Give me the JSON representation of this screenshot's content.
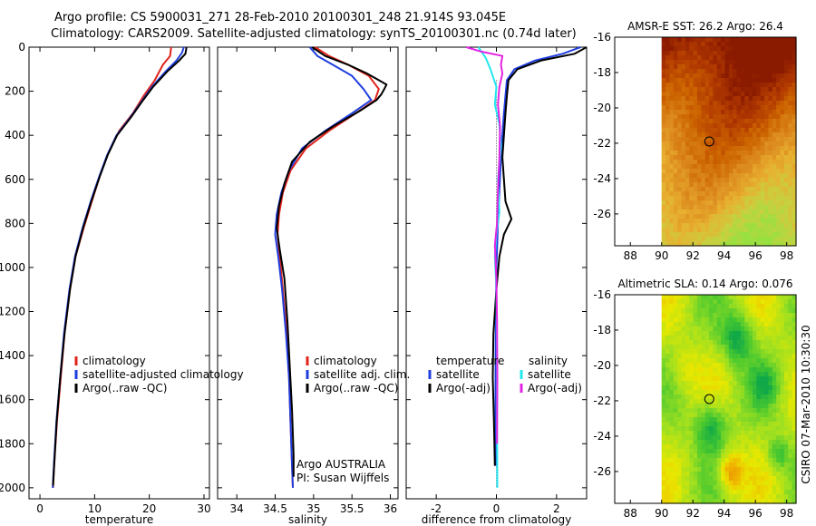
{
  "header": {
    "line1": "Argo profile: CS 5900031_271 28-Feb-2010 20100301_248 21.914S 93.045E",
    "line2": "Climatology: CARS2009. Satellite-adjusted climatology: synTS_20100301.nc (0.74d later)"
  },
  "side_label": "CSIRO 07-Mar-2010 10:30:30",
  "colors": {
    "red": "#e0241b",
    "blue": "#1f3ee0",
    "black": "#000000",
    "cyan": "#22e6f0",
    "magenta": "#e224e2"
  },
  "chart_data": [
    {
      "type": "line",
      "id": "temperature",
      "xlabel": "temperature",
      "ylabel": "",
      "xlim": [
        -2,
        31
      ],
      "ylim": [
        2050,
        0
      ],
      "xticks": [
        0,
        10,
        20,
        30
      ],
      "yticks": [
        0,
        200,
        400,
        600,
        800,
        1000,
        1200,
        1400,
        1600,
        1800,
        2000
      ],
      "legend": [
        "climatology",
        "satellite-adjusted climatology",
        "Argo(..raw -QC)"
      ],
      "series": [
        {
          "name": "climatology",
          "color": "red",
          "points": [
            [
              24,
              0
            ],
            [
              23.8,
              40
            ],
            [
              22.5,
              80
            ],
            [
              21,
              150
            ],
            [
              19,
              220
            ],
            [
              17,
              300
            ],
            [
              14.5,
              380
            ],
            [
              12.5,
              480
            ],
            [
              11,
              580
            ],
            [
              9.5,
              700
            ],
            [
              8,
              820
            ],
            [
              6.5,
              950
            ],
            [
              5.5,
              1100
            ],
            [
              4.5,
              1300
            ],
            [
              3.8,
              1500
            ],
            [
              3.1,
              1700
            ],
            [
              2.6,
              1900
            ],
            [
              2.4,
              2000
            ]
          ]
        },
        {
          "name": "satellite-adjusted climatology",
          "color": "blue",
          "points": [
            [
              26.3,
              0
            ],
            [
              26,
              25
            ],
            [
              25,
              60
            ],
            [
              23,
              110
            ],
            [
              20.5,
              180
            ],
            [
              18.5,
              250
            ],
            [
              16.5,
              320
            ],
            [
              14,
              400
            ],
            [
              12.3,
              490
            ],
            [
              10.8,
              590
            ],
            [
              9.3,
              700
            ],
            [
              7.8,
              820
            ],
            [
              6.4,
              950
            ],
            [
              5.4,
              1100
            ],
            [
              4.4,
              1300
            ],
            [
              3.7,
              1500
            ],
            [
              3,
              1700
            ],
            [
              2.55,
              1900
            ],
            [
              2.35,
              2000
            ]
          ]
        },
        {
          "name": "Argo(..raw -QC)",
          "color": "black",
          "points": [
            [
              26.8,
              0
            ],
            [
              26.6,
              30
            ],
            [
              25.5,
              60
            ],
            [
              23.3,
              110
            ],
            [
              20.7,
              180
            ],
            [
              18.6,
              250
            ],
            [
              16.6,
              320
            ],
            [
              14.1,
              400
            ],
            [
              12.4,
              490
            ],
            [
              10.9,
              590
            ],
            [
              9.4,
              700
            ],
            [
              7.9,
              820
            ],
            [
              6.5,
              950
            ],
            [
              5.5,
              1100
            ],
            [
              4.5,
              1300
            ],
            [
              3.7,
              1500
            ],
            [
              3.05,
              1700
            ],
            [
              2.6,
              1900
            ],
            [
              2.4,
              1990
            ]
          ]
        }
      ]
    },
    {
      "type": "line",
      "id": "salinity",
      "xlabel": "salinity",
      "ylabel": "",
      "xlim": [
        33.75,
        36.1
      ],
      "ylim": [
        2050,
        0
      ],
      "xticks": [
        34,
        34.5,
        35,
        35.5,
        36
      ],
      "yticks": [],
      "legend": [
        "climatology",
        "satellite adj. clim.",
        "Argo(..raw -QC)"
      ],
      "annotation": [
        "Argo AUSTRALIA",
        "PI: Susan Wijffels"
      ],
      "series": [
        {
          "name": "climatology",
          "color": "red",
          "points": [
            [
              35.02,
              0
            ],
            [
              35.2,
              40
            ],
            [
              35.45,
              80
            ],
            [
              35.72,
              130
            ],
            [
              35.85,
              190
            ],
            [
              35.8,
              240
            ],
            [
              35.55,
              300
            ],
            [
              35.2,
              380
            ],
            [
              34.9,
              460
            ],
            [
              34.7,
              560
            ],
            [
              34.6,
              660
            ],
            [
              34.55,
              760
            ],
            [
              34.53,
              850
            ],
            [
              34.56,
              950
            ],
            [
              34.6,
              1100
            ],
            [
              34.65,
              1300
            ],
            [
              34.68,
              1500
            ],
            [
              34.7,
              1700
            ],
            [
              34.72,
              1900
            ],
            [
              34.73,
              2000
            ]
          ]
        },
        {
          "name": "satellite adj. clim.",
          "color": "blue",
          "points": [
            [
              34.95,
              0
            ],
            [
              35.05,
              40
            ],
            [
              35.25,
              80
            ],
            [
              35.5,
              130
            ],
            [
              35.65,
              190
            ],
            [
              35.75,
              240
            ],
            [
              35.5,
              300
            ],
            [
              35.15,
              380
            ],
            [
              34.85,
              460
            ],
            [
              34.68,
              560
            ],
            [
              34.58,
              660
            ],
            [
              34.52,
              760
            ],
            [
              34.5,
              850
            ],
            [
              34.54,
              950
            ],
            [
              34.59,
              1100
            ],
            [
              34.64,
              1300
            ],
            [
              34.68,
              1500
            ],
            [
              34.7,
              1700
            ],
            [
              34.72,
              1900
            ],
            [
              34.73,
              2000
            ]
          ]
        },
        {
          "name": "Argo(..raw -QC)",
          "color": "black",
          "points": [
            [
              34.98,
              0
            ],
            [
              35.15,
              40
            ],
            [
              35.45,
              80
            ],
            [
              35.7,
              120
            ],
            [
              35.85,
              150
            ],
            [
              35.95,
              170
            ],
            [
              35.92,
              190
            ],
            [
              35.88,
              215
            ],
            [
              35.82,
              240
            ],
            [
              35.6,
              290
            ],
            [
              35.25,
              360
            ],
            [
              34.95,
              430
            ],
            [
              34.72,
              520
            ],
            [
              34.62,
              620
            ],
            [
              34.55,
              720
            ],
            [
              34.52,
              820
            ],
            [
              34.56,
              920
            ],
            [
              34.62,
              1050
            ],
            [
              34.66,
              1250
            ],
            [
              34.69,
              1450
            ],
            [
              34.72,
              1650
            ],
            [
              34.74,
              1850
            ],
            [
              34.74,
              1950
            ]
          ]
        }
      ]
    },
    {
      "type": "line",
      "id": "difference",
      "xlabel": "difference from climatology",
      "ylabel": "",
      "xlim": [
        -3,
        3
      ],
      "ylim": [
        2050,
        0
      ],
      "xticks": [
        -2,
        0,
        2
      ],
      "yticks": [],
      "legend_temperature_title": "temperature",
      "legend_temperature": [
        "satellite",
        "Argo(-adj)"
      ],
      "legend_salinity_title": "salinity",
      "legend_salinity": [
        "satellite",
        "Argo(-adj)"
      ],
      "series": [
        {
          "name": "temperature satellite",
          "color": "blue",
          "points": [
            [
              2.8,
              0
            ],
            [
              2.2,
              30
            ],
            [
              1.3,
              60
            ],
            [
              0.6,
              100
            ],
            [
              0.35,
              150
            ],
            [
              0.3,
              220
            ],
            [
              0.25,
              300
            ],
            [
              0.2,
              400
            ],
            [
              0.15,
              500
            ],
            [
              0.1,
              650
            ],
            [
              0.05,
              800
            ],
            [
              0,
              1000
            ],
            [
              -0.02,
              1300
            ],
            [
              -0.03,
              1600
            ],
            [
              -0.02,
              1900
            ]
          ]
        },
        {
          "name": "temperature Argo(-adj)",
          "color": "black",
          "points": [
            [
              3,
              0
            ],
            [
              2.6,
              30
            ],
            [
              1.5,
              60
            ],
            [
              0.7,
              100
            ],
            [
              0.4,
              150
            ],
            [
              0.35,
              220
            ],
            [
              0.3,
              300
            ],
            [
              0.25,
              400
            ],
            [
              0.2,
              500
            ],
            [
              0.3,
              700
            ],
            [
              0.5,
              780
            ],
            [
              0.25,
              850
            ],
            [
              0.1,
              950
            ],
            [
              0,
              1100
            ],
            [
              -0.1,
              1300
            ],
            [
              -0.12,
              1500
            ],
            [
              -0.08,
              1700
            ],
            [
              -0.05,
              1900
            ]
          ]
        },
        {
          "name": "salinity satellite",
          "color": "cyan",
          "points": [
            [
              -0.6,
              0
            ],
            [
              -0.35,
              50
            ],
            [
              -0.2,
              100
            ],
            [
              0,
              180
            ],
            [
              -0.05,
              260
            ],
            [
              0.1,
              350
            ],
            [
              0.15,
              450
            ],
            [
              0.05,
              600
            ],
            [
              0.1,
              750
            ],
            [
              0,
              850
            ],
            [
              -0.05,
              950
            ],
            [
              0,
              1100
            ],
            [
              0.02,
              1400
            ],
            [
              0.02,
              1700
            ],
            [
              0.03,
              2000
            ]
          ]
        },
        {
          "name": "salinity Argo(-adj)",
          "color": "magenta",
          "points": [
            [
              -1,
              0
            ],
            [
              -0.5,
              20
            ],
            [
              0.2,
              40
            ],
            [
              0.15,
              80
            ],
            [
              0.2,
              120
            ],
            [
              0.1,
              180
            ],
            [
              0.05,
              260
            ],
            [
              0.12,
              360
            ],
            [
              0.1,
              500
            ],
            [
              0.05,
              650
            ],
            [
              0.02,
              800
            ],
            [
              -0.05,
              900
            ],
            [
              0,
              1050
            ],
            [
              0.02,
              1250
            ],
            [
              0.03,
              1500
            ],
            [
              0.02,
              1800
            ]
          ]
        }
      ]
    },
    {
      "type": "heatmap",
      "id": "sst",
      "title": "AMSR-E SST: 26.2 Argo: 26.4",
      "xlim": [
        87,
        98.6
      ],
      "ylim": [
        -27.8,
        -16
      ],
      "xticks": [
        88,
        90,
        92,
        94,
        96,
        98
      ],
      "yticks": [
        -16,
        -18,
        -20,
        -22,
        -24,
        -26
      ],
      "data_xrange": [
        90,
        98.6
      ],
      "marker": [
        93.05,
        -21.9
      ],
      "palette": [
        "#8a1a00",
        "#b23a00",
        "#cc6400",
        "#dc8a1e",
        "#e8b030",
        "#c8d040",
        "#98e040"
      ]
    },
    {
      "type": "heatmap",
      "id": "sla",
      "title": "Altimetric SLA: 0.14 Argo: 0.076",
      "xlim": [
        87,
        98.6
      ],
      "ylim": [
        -27.8,
        -16
      ],
      "xticks": [
        88,
        90,
        92,
        94,
        96,
        98
      ],
      "yticks": [
        -16,
        -18,
        -20,
        -22,
        -24,
        -26
      ],
      "data_xrange": [
        90,
        98.6
      ],
      "marker": [
        93.05,
        -21.9
      ],
      "palette": [
        "#10a848",
        "#48c830",
        "#a0e020",
        "#e8e800",
        "#f0b000",
        "#e07000"
      ]
    }
  ]
}
